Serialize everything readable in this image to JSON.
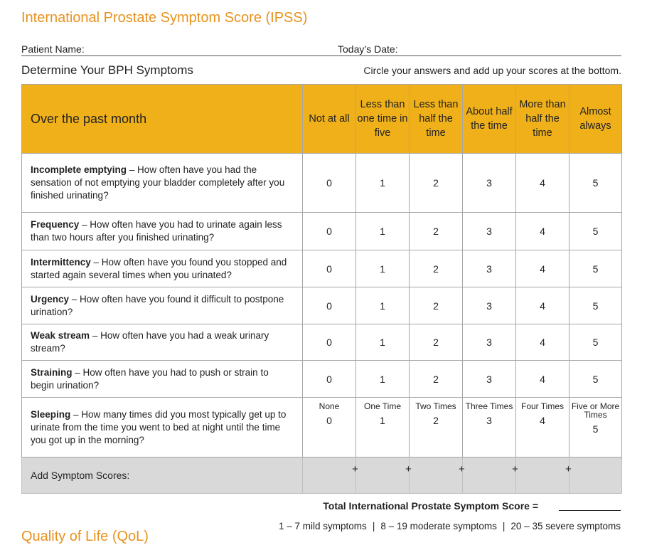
{
  "header": {
    "title": "International Prostate Symptom Score (IPSS)",
    "patient_name_label": "Patient Name:",
    "date_label": "Today’s Date:"
  },
  "section": {
    "title": "Determine Your BPH Symptoms",
    "instructions": "Circle your answers and add up your scores at the bottom."
  },
  "table": {
    "columns": [
      "Over the past month",
      "Not at all",
      "Less than one time in five",
      "Less than half the time",
      "About half the time",
      "More than half the time",
      "Almost always"
    ],
    "rows": [
      {
        "term": "Incomplete emptying",
        "description": "– How often have you had the sensation of not emptying your bladder completely after you finished urinating?",
        "scores": [
          0,
          1,
          2,
          3,
          4,
          5
        ]
      },
      {
        "term": "Frequency",
        "description": "– How often have you had to urinate again less than two hours after you finished urinating?",
        "scores": [
          0,
          1,
          2,
          3,
          4,
          5
        ]
      },
      {
        "term": "Intermittency",
        "description": "– How often have you found you stopped and started again several times when you urinated?",
        "scores": [
          0,
          1,
          2,
          3,
          4,
          5
        ]
      },
      {
        "term": "Urgency",
        "description": "– How often have you found it difficult to postpone urination?",
        "scores": [
          0,
          1,
          2,
          3,
          4,
          5
        ]
      },
      {
        "term": "Weak stream",
        "description": "– How often have you had a weak urinary stream?",
        "scores": [
          0,
          1,
          2,
          3,
          4,
          5
        ]
      },
      {
        "term": "Straining",
        "description": "– How often have you had to push or strain to begin urination?",
        "scores": [
          0,
          1,
          2,
          3,
          4,
          5
        ]
      },
      {
        "term": "Sleeping",
        "description": "– How many times did you most typically get up to urinate from the time you went to bed at night until the time you got up in the morning?",
        "options": [
          "None",
          "One Time",
          "Two Times",
          "Three Times",
          "Four Times",
          "Five or More Times"
        ],
        "scores": [
          0,
          1,
          2,
          3,
          4,
          5
        ]
      }
    ],
    "footer_label": "Add Symptom Scores:",
    "sum_sign": "+"
  },
  "total": {
    "label": "Total International Prostate Symptom Score =",
    "ranges": [
      "1 – 7 mild symptoms",
      "8 – 19 moderate symptoms",
      "20 – 35 severe symptoms"
    ],
    "separator": "|"
  },
  "next_section": {
    "title": "Quality of Life (QoL)"
  }
}
